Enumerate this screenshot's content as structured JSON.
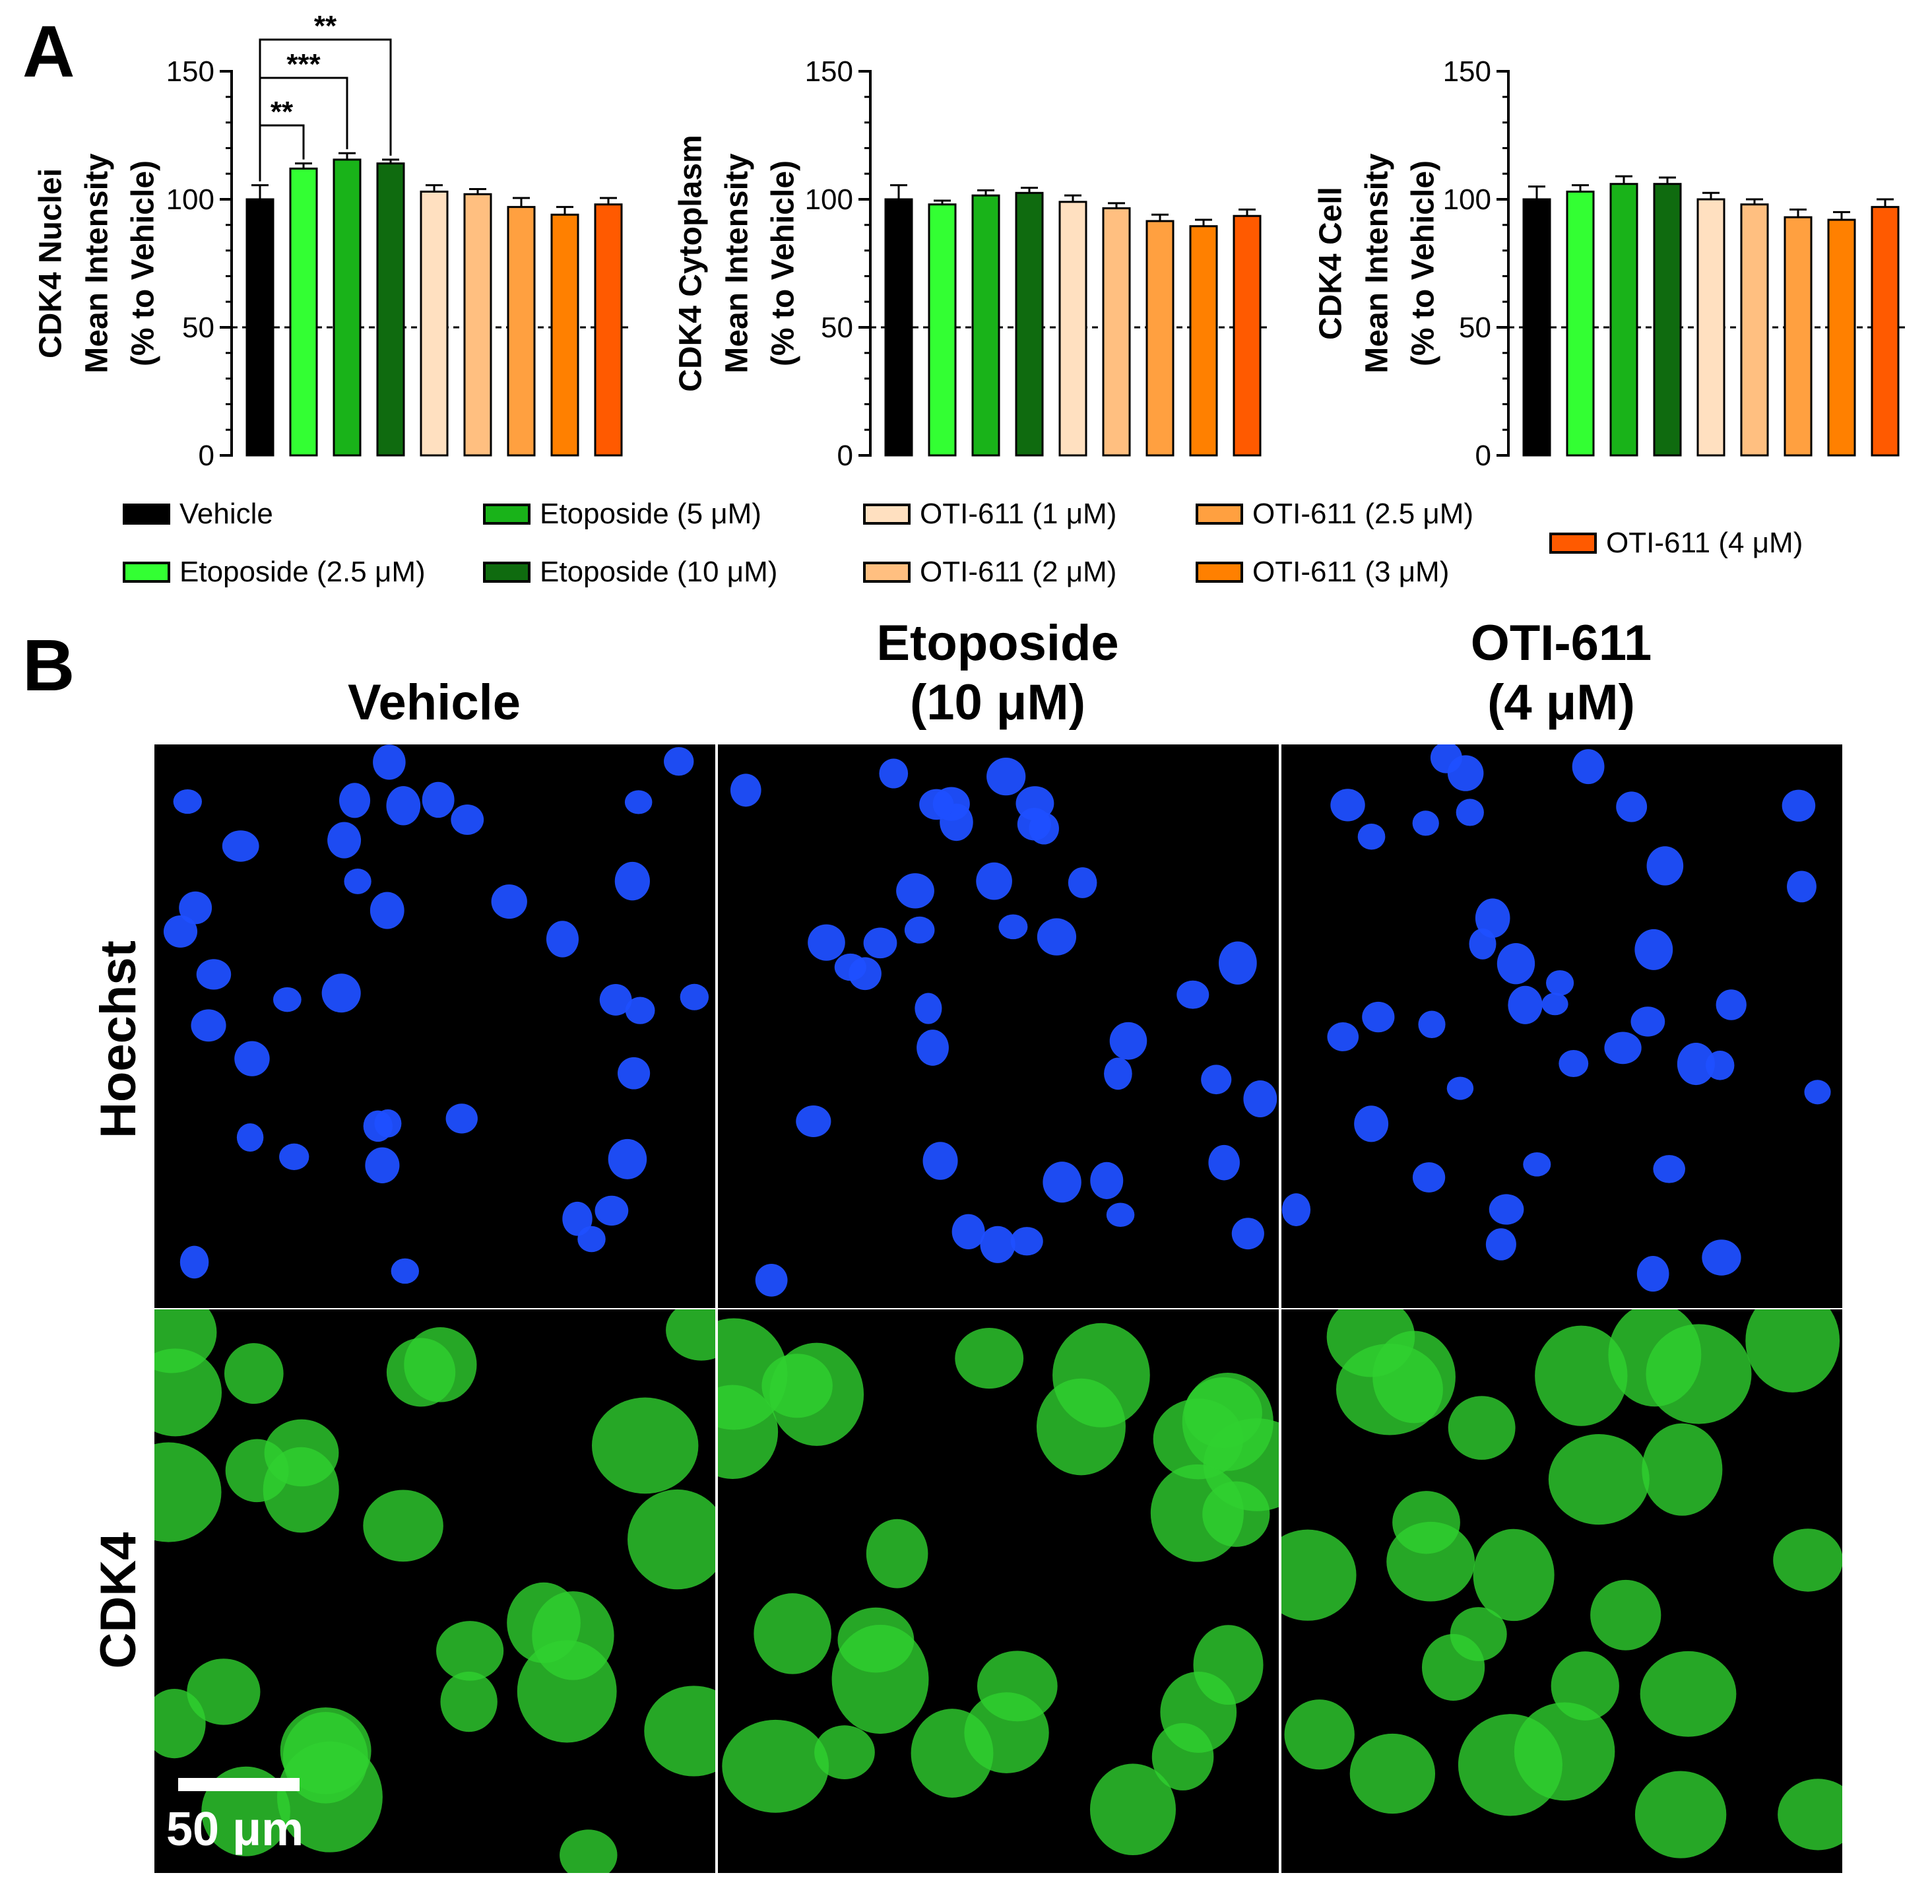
{
  "panel_labels": {
    "a": "A",
    "b": "B"
  },
  "chart_data": [
    {
      "type": "bar",
      "ylabel": [
        "CDK4 Nuclei",
        "Mean Intensity",
        "(% to Vehicle)"
      ],
      "ylim": [
        0,
        150
      ],
      "yticks": [
        0,
        50,
        100,
        150
      ],
      "reference_line": 50,
      "categories": [
        "Vehicle",
        "Etoposide (2.5 μM)",
        "Etoposide (5 μM)",
        "Etoposide (10 μM)",
        "OTI-611 (1 μM)",
        "OTI-611 (2 μM)",
        "OTI-611 (2.5 μM)",
        "OTI-611 (3 μM)",
        "OTI-611 (4 μM)"
      ],
      "values": [
        100,
        112,
        115.5,
        114,
        103,
        102,
        97,
        94,
        98
      ],
      "errors": [
        5.5,
        2,
        2.5,
        1.5,
        2.5,
        2,
        3.5,
        3,
        2.5
      ],
      "significance": [
        {
          "from": 0,
          "to": 1,
          "label": "**"
        },
        {
          "from": 0,
          "to": 2,
          "label": "***"
        },
        {
          "from": 0,
          "to": 3,
          "label": "**"
        }
      ]
    },
    {
      "type": "bar",
      "ylabel": [
        "CDK4 Cytoplasm",
        "Mean Intensity",
        "(% to Vehicle)"
      ],
      "ylim": [
        0,
        150
      ],
      "yticks": [
        0,
        50,
        100,
        150
      ],
      "reference_line": 50,
      "categories": [
        "Vehicle",
        "Etoposide (2.5 μM)",
        "Etoposide (5 μM)",
        "Etoposide (10 μM)",
        "OTI-611 (1 μM)",
        "OTI-611 (2 μM)",
        "OTI-611 (2.5 μM)",
        "OTI-611 (3 μM)",
        "OTI-611 (4 μM)"
      ],
      "values": [
        100,
        98,
        101.5,
        102.5,
        99,
        96.5,
        91.5,
        89.5,
        93.5
      ],
      "errors": [
        5.5,
        1.5,
        2,
        2,
        2.5,
        2,
        2.5,
        2.5,
        2.5
      ],
      "significance": []
    },
    {
      "type": "bar",
      "ylabel": [
        "CDK4 Cell",
        "Mean Intensity",
        "(% to Vehicle)"
      ],
      "ylim": [
        0,
        150
      ],
      "yticks": [
        0,
        50,
        100,
        150
      ],
      "reference_line": 50,
      "categories": [
        "Vehicle",
        "Etoposide (2.5 μM)",
        "Etoposide (5 μM)",
        "Etoposide (10 μM)",
        "OTI-611 (1 μM)",
        "OTI-611 (2 μM)",
        "OTI-611 (2.5 μM)",
        "OTI-611 (3 μM)",
        "OTI-611 (4 μM)"
      ],
      "values": [
        100,
        103,
        106,
        106,
        100,
        98,
        93,
        92,
        97
      ],
      "errors": [
        5,
        2.5,
        3,
        2.5,
        2.5,
        2,
        3,
        3,
        3
      ],
      "significance": []
    }
  ],
  "series_colors": [
    "#000000",
    "#33ff33",
    "#19b319",
    "#0f6b0f",
    "#ffe0c0",
    "#ffbf80",
    "#ffa040",
    "#ff8000",
    "#ff5a00"
  ],
  "legend": [
    {
      "label": "Vehicle",
      "color": "#000000"
    },
    {
      "label": "Etoposide (2.5 μM)",
      "color": "#33ff33"
    },
    {
      "label": "Etoposide (5 μM)",
      "color": "#19b319"
    },
    {
      "label": "Etoposide (10 μM)",
      "color": "#0f6b0f"
    },
    {
      "label": "OTI-611 (1 μM)",
      "color": "#ffe0c0"
    },
    {
      "label": "OTI-611 (2 μM)",
      "color": "#ffbf80"
    },
    {
      "label": "OTI-611 (2.5 μM)",
      "color": "#ffa040"
    },
    {
      "label": "OTI-611 (3 μM)",
      "color": "#ff8000"
    },
    {
      "label": "OTI-611 (4 μM)",
      "color": "#ff5a00"
    }
  ],
  "panel_b": {
    "columns": [
      "Vehicle",
      "Etoposide\n(10 μM)",
      "OTI-611\n(4 μM)"
    ],
    "rows": [
      "Hoechst",
      "CDK4"
    ],
    "row_colors": [
      "#1f4fff",
      "#2fd12f"
    ],
    "scale_bar_label": "50 μm"
  }
}
